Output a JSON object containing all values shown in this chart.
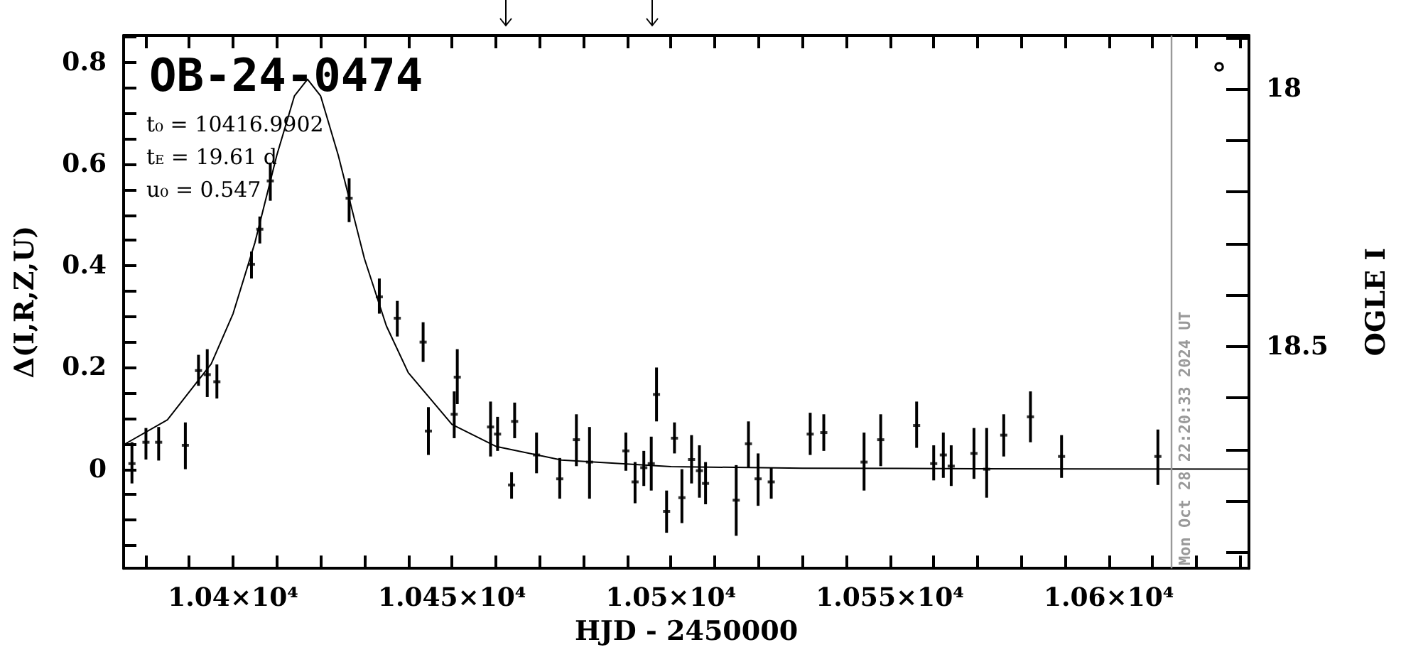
{
  "chart_data": {
    "type": "scatter",
    "title": "OB-24-0474",
    "annotations": [
      "t₀ = 10416.9902",
      "t$_{E}$ = 19.61 d",
      "u₀ = 0.547",
      "Mon Oct 28 22:20:33 2024 UT"
    ],
    "xlabel": "HJD - 2450000",
    "ylabel": "Δ(I,R,Z,U)",
    "y2label": "OGLE I",
    "xlim": [
      10375,
      10632
    ],
    "ylim": [
      -0.195,
      0.853
    ],
    "y2lim": [
      18.931,
      17.896
    ],
    "xticks": [
      {
        "value": 10380,
        "label": null
      },
      {
        "value": 10390,
        "label": null
      },
      {
        "value": 10400,
        "label": "1.04×10⁴"
      },
      {
        "value": 10410,
        "label": null
      },
      {
        "value": 10420,
        "label": null
      },
      {
        "value": 10430,
        "label": null
      },
      {
        "value": 10440,
        "label": null
      },
      {
        "value": 10450,
        "label": "1.045×10⁴"
      },
      {
        "value": 10460,
        "label": null
      },
      {
        "value": 10470,
        "label": null
      },
      {
        "value": 10480,
        "label": null
      },
      {
        "value": 10490,
        "label": null
      },
      {
        "value": 10500,
        "label": "1.05×10⁴"
      },
      {
        "value": 10510,
        "label": null
      },
      {
        "value": 10520,
        "label": null
      },
      {
        "value": 10530,
        "label": null
      },
      {
        "value": 10540,
        "label": null
      },
      {
        "value": 10550,
        "label": "1.055×10⁴"
      },
      {
        "value": 10560,
        "label": null
      },
      {
        "value": 10570,
        "label": null
      },
      {
        "value": 10580,
        "label": null
      },
      {
        "value": 10590,
        "label": null
      },
      {
        "value": 10600,
        "label": "1.06×10⁴"
      },
      {
        "value": 10610,
        "label": null
      },
      {
        "value": 10620,
        "label": null
      },
      {
        "value": 10630,
        "label": null
      }
    ],
    "yticks": [
      {
        "value": -0.15,
        "label": null
      },
      {
        "value": -0.1,
        "label": null
      },
      {
        "value": -0.05,
        "label": null
      },
      0,
      {
        "value": 0.05,
        "label": null
      },
      {
        "value": 0.1,
        "label": null
      },
      {
        "value": 0.15,
        "label": null
      },
      0.2,
      {
        "value": 0.25,
        "label": null
      },
      {
        "value": 0.3,
        "label": null
      },
      {
        "value": 0.35,
        "label": null
      },
      0.4,
      {
        "value": 0.45,
        "label": null
      },
      {
        "value": 0.5,
        "label": null
      },
      {
        "value": 0.55,
        "label": null
      },
      0.6,
      {
        "value": 0.65,
        "label": null
      },
      {
        "value": 0.7,
        "label": null
      },
      {
        "value": 0.75,
        "label": null
      },
      0.8,
      {
        "value": 0.85,
        "label": null
      }
    ],
    "y2ticks": [
      {
        "value": 17.9,
        "label": null
      },
      18,
      {
        "value": 18.1,
        "label": null
      },
      {
        "value": 18.2,
        "label": null
      },
      {
        "value": 18.3,
        "label": null
      },
      {
        "value": 18.4,
        "label": null
      },
      18.5,
      {
        "value": 18.6,
        "label": null
      },
      {
        "value": 18.7,
        "label": null
      },
      {
        "value": 18.8,
        "label": null
      },
      {
        "value": 18.9,
        "label": null
      }
    ],
    "ref_lines": [
      {
        "axis": "x",
        "value": 10614.3,
        "color": "#999999"
      }
    ],
    "series": [
      {
        "color": "#000000",
        "x": [
          10376.9,
          10380.1,
          10383.0,
          10389.1,
          10392.1,
          10394.1,
          10396.3,
          10404.2,
          10406.1,
          10408.5,
          10426.5,
          10433.4,
          10437.5,
          10443.4,
          10444.6,
          10450.5,
          10451.2,
          10458.8,
          10460.4,
          10464.3,
          10463.6,
          10469.3,
          10474.6,
          10478.4,
          10481.4,
          10489.7,
          10491.8,
          10493.8,
          10495.5,
          10496.7,
          10499.0,
          10500.8,
          10502.5,
          10504.7,
          10506.5,
          10507.9,
          10514.9,
          10517.7,
          10519.9,
          10522.9,
          10531.8,
          10534.9,
          10544.1,
          10547.9,
          10556.1,
          10560.0,
          10562.2,
          10564.0,
          10569.2,
          10572.1,
          10576.0,
          10582.1,
          10589.2,
          10611.2
        ],
        "values": [
          0.011,
          0.053,
          0.053,
          0.047,
          0.194,
          0.186,
          0.172,
          0.403,
          0.472,
          0.567,
          0.533,
          0.339,
          0.297,
          0.25,
          0.075,
          0.108,
          0.181,
          0.083,
          0.069,
          0.094,
          -0.031,
          0.028,
          -0.019,
          0.058,
          0.014,
          0.036,
          -0.025,
          0.003,
          0.011,
          0.147,
          -0.083,
          0.061,
          -0.056,
          0.019,
          -0.003,
          -0.028,
          -0.061,
          0.05,
          -0.019,
          -0.025,
          0.069,
          0.072,
          0.014,
          0.058,
          0.086,
          0.011,
          0.028,
          0.006,
          0.031,
          0,
          0.067,
          0.103,
          0.025,
          0.025
        ],
        "errors": [
          [
            -0.028,
            0.053
          ],
          [
            0.019,
            0.081
          ],
          [
            0.017,
            0.083
          ],
          [
            0,
            0.092
          ],
          [
            0.164,
            0.225
          ],
          [
            0.142,
            0.236
          ],
          [
            0.139,
            0.206
          ],
          [
            0.375,
            0.428
          ],
          [
            0.444,
            0.497
          ],
          [
            0.528,
            0.603
          ],
          [
            0.486,
            0.572
          ],
          [
            0.306,
            0.375
          ],
          [
            0.261,
            0.331
          ],
          [
            0.211,
            0.289
          ],
          [
            0.028,
            0.122
          ],
          [
            0.061,
            0.153
          ],
          [
            0.128,
            0.236
          ],
          [
            0.025,
            0.133
          ],
          [
            0.036,
            0.103
          ],
          [
            0.061,
            0.131
          ],
          [
            -0.058,
            -0.006
          ],
          [
            -0.008,
            0.072
          ],
          [
            -0.058,
            0.022
          ],
          [
            0.006,
            0.108
          ],
          [
            -0.058,
            0.083
          ],
          [
            -0.003,
            0.072
          ],
          [
            -0.067,
            0.014
          ],
          [
            -0.033,
            0.036
          ],
          [
            -0.042,
            0.064
          ],
          [
            0.094,
            0.2
          ],
          [
            -0.125,
            -0.042
          ],
          [
            0.031,
            0.092
          ],
          [
            -0.106,
            0
          ],
          [
            -0.028,
            0.067
          ],
          [
            -0.056,
            0.047
          ],
          [
            -0.069,
            0.014
          ],
          [
            -0.131,
            0.008
          ],
          [
            0.003,
            0.094
          ],
          [
            -0.072,
            0.031
          ],
          [
            -0.058,
            0.003
          ],
          [
            0.028,
            0.111
          ],
          [
            0.036,
            0.108
          ],
          [
            -0.042,
            0.072
          ],
          [
            0.006,
            0.108
          ],
          [
            0.042,
            0.133
          ],
          [
            -0.022,
            0.047
          ],
          [
            -0.017,
            0.072
          ],
          [
            -0.033,
            0.047
          ],
          [
            -0.019,
            0.081
          ],
          [
            -0.056,
            0.081
          ],
          [
            0.025,
            0.108
          ],
          [
            0.053,
            0.153
          ],
          [
            -0.017,
            0.067
          ],
          [
            -0.031,
            0.078
          ]
        ]
      },
      {
        "type": "line",
        "color": "#000000",
        "x": [
          10375,
          10385,
          10395,
          10400,
          10405,
          10410,
          10414,
          10417,
          10420,
          10424,
          10430,
          10435,
          10440,
          10450,
          10460,
          10475,
          10500,
          10530,
          10570,
          10632
        ],
        "values": [
          0.048,
          0.097,
          0.207,
          0.306,
          0.446,
          0.618,
          0.734,
          0.767,
          0.734,
          0.618,
          0.414,
          0.282,
          0.19,
          0.088,
          0.045,
          0.018,
          0.005,
          0.002,
          0.001,
          0
        ]
      }
    ]
  }
}
